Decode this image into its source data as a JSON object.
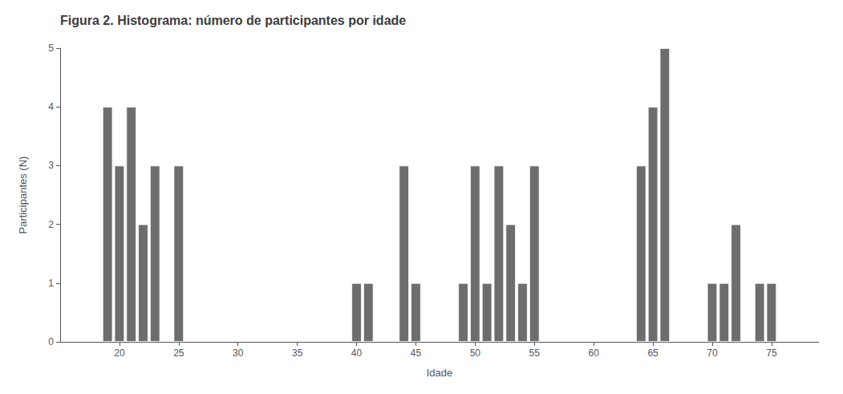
{
  "chart_data": {
    "type": "bar",
    "title": "Figura 2. Histograma: número de participantes por idade",
    "xlabel": "Idade",
    "ylabel": "Participantes (N)",
    "x": [
      19,
      20,
      21,
      22,
      23,
      25,
      40,
      41,
      44,
      45,
      49,
      50,
      51,
      52,
      53,
      54,
      55,
      64,
      65,
      66,
      70,
      71,
      72,
      74,
      75
    ],
    "values": [
      4,
      3,
      4,
      2,
      3,
      3,
      1,
      1,
      3,
      1,
      1,
      3,
      1,
      3,
      2,
      1,
      3,
      3,
      4,
      5,
      1,
      1,
      2,
      1,
      1
    ],
    "color": "#6d6d6d",
    "xlim": [
      15,
      79
    ],
    "xticks": [
      20,
      25,
      30,
      35,
      40,
      45,
      50,
      55,
      60,
      65,
      70,
      75
    ],
    "ylim": [
      0,
      5
    ],
    "yticks": [
      0,
      1,
      2,
      3,
      4,
      5
    ],
    "grid": false
  }
}
